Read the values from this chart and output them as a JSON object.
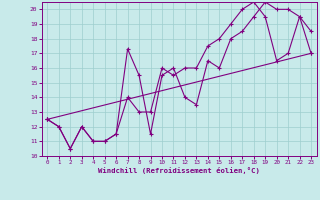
{
  "xlabel": "Windchill (Refroidissement éolien,°C)",
  "xlim": [
    -0.5,
    23.5
  ],
  "ylim": [
    10,
    20.5
  ],
  "xticks": [
    0,
    1,
    2,
    3,
    4,
    5,
    6,
    7,
    8,
    9,
    10,
    11,
    12,
    13,
    14,
    15,
    16,
    17,
    18,
    19,
    20,
    21,
    22,
    23
  ],
  "yticks": [
    10,
    11,
    12,
    13,
    14,
    15,
    16,
    17,
    18,
    19,
    20
  ],
  "bg_color": "#c8eaea",
  "line_color": "#800080",
  "series1_x": [
    0,
    1,
    2,
    3,
    4,
    5,
    6,
    7,
    8,
    9,
    10,
    11,
    12,
    13,
    14,
    15,
    16,
    17,
    18,
    19,
    20,
    21,
    22,
    23
  ],
  "series1_y": [
    12.5,
    12.0,
    10.5,
    12.0,
    11.0,
    11.0,
    11.5,
    17.3,
    15.5,
    11.5,
    15.5,
    16.0,
    14.0,
    13.5,
    16.5,
    16.0,
    18.0,
    18.5,
    19.5,
    20.5,
    20.0,
    20.0,
    19.5,
    17.0
  ],
  "series2_x": [
    0,
    1,
    2,
    3,
    4,
    5,
    6,
    7,
    8,
    9,
    10,
    11,
    12,
    13,
    14,
    15,
    16,
    17,
    18,
    19,
    20,
    21,
    22,
    23
  ],
  "series2_y": [
    12.5,
    12.0,
    10.5,
    12.0,
    11.0,
    11.0,
    11.5,
    14.0,
    13.0,
    13.0,
    16.0,
    15.5,
    16.0,
    16.0,
    17.5,
    18.0,
    19.0,
    20.0,
    20.5,
    19.5,
    16.5,
    17.0,
    19.5,
    18.5
  ],
  "series3_x": [
    0,
    23
  ],
  "series3_y": [
    12.5,
    17.0
  ]
}
